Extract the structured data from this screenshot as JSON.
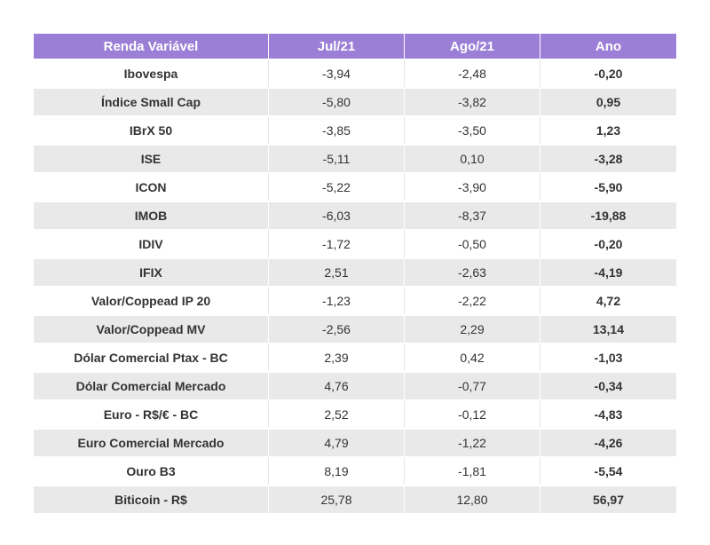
{
  "table": {
    "headers": [
      "Renda Variável",
      "Jul/21",
      "Ago/21",
      "Ano"
    ],
    "rows": [
      {
        "name": "Ibovespa",
        "jul": "-3,94",
        "ago": "-2,48",
        "ano": "-0,20"
      },
      {
        "name": "Índice Small Cap",
        "jul": "-5,80",
        "ago": "-3,82",
        "ano": "0,95"
      },
      {
        "name": "IBrX 50",
        "jul": "-3,85",
        "ago": "-3,50",
        "ano": "1,23"
      },
      {
        "name": "ISE",
        "jul": "-5,11",
        "ago": "0,10",
        "ano": "-3,28"
      },
      {
        "name": "ICON",
        "jul": "-5,22",
        "ago": "-3,90",
        "ano": "-5,90"
      },
      {
        "name": "IMOB",
        "jul": "-6,03",
        "ago": "-8,37",
        "ano": "-19,88"
      },
      {
        "name": "IDIV",
        "jul": "-1,72",
        "ago": "-0,50",
        "ano": "-0,20"
      },
      {
        "name": "IFIX",
        "jul": "2,51",
        "ago": "-2,63",
        "ano": "-4,19"
      },
      {
        "name": "Valor/Coppead IP 20",
        "jul": "-1,23",
        "ago": "-2,22",
        "ano": "4,72"
      },
      {
        "name": "Valor/Coppead MV",
        "jul": "-2,56",
        "ago": "2,29",
        "ano": "13,14"
      },
      {
        "name": "Dólar Comercial Ptax - BC",
        "jul": "2,39",
        "ago": "0,42",
        "ano": "-1,03"
      },
      {
        "name": "Dólar Comercial Mercado",
        "jul": "4,76",
        "ago": "-0,77",
        "ano": "-0,34"
      },
      {
        "name": "Euro - R$/€ - BC",
        "jul": "2,52",
        "ago": "-0,12",
        "ano": "-4,83"
      },
      {
        "name": "Euro Comercial Mercado",
        "jul": "4,79",
        "ago": "-1,22",
        "ano": "-4,26"
      },
      {
        "name": "Ouro B3",
        "jul": "8,19",
        "ago": "-1,81",
        "ano": "-5,54"
      },
      {
        "name": "Biticoin - R$",
        "jul": "25,78",
        "ago": "12,80",
        "ano": "56,97"
      }
    ]
  },
  "colors": {
    "header_bg": "#9b7fd6",
    "header_text": "#ffffff",
    "stripe_bg": "#e9e9e9",
    "text": "#333333"
  }
}
